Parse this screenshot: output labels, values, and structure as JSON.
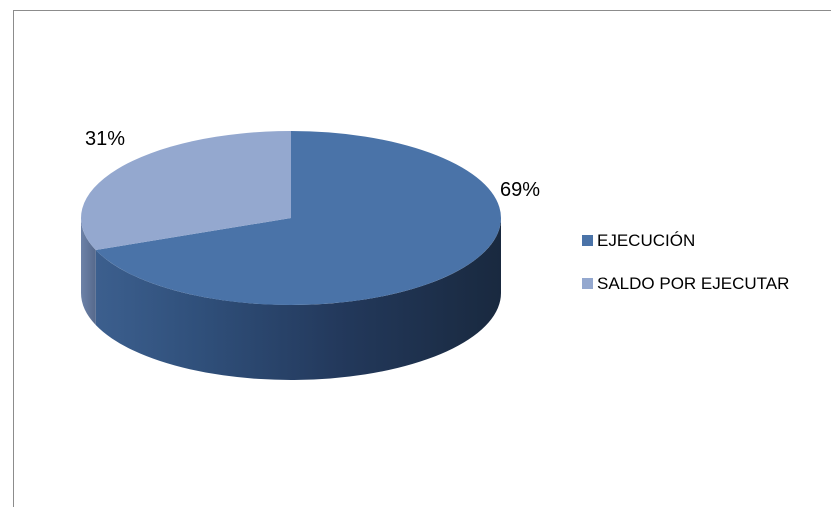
{
  "chart_data": {
    "type": "pie",
    "title": "",
    "categories": [
      "EJECUCIÓN",
      "SALDO POR EJECUTAR"
    ],
    "values": [
      69,
      31
    ],
    "data_labels": [
      "69%",
      "31%"
    ],
    "colors": [
      "#4a73a8",
      "#94a8cf"
    ],
    "legend_position": "right",
    "style": "3d"
  }
}
